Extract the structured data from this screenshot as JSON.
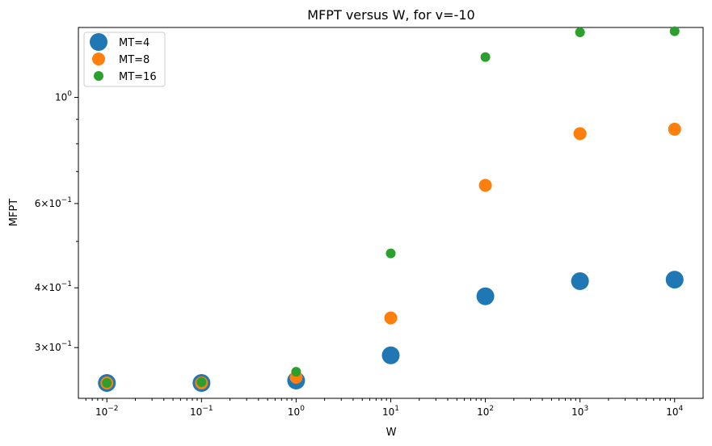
{
  "chart_data": {
    "type": "scatter",
    "title": "MFPT versus W, for v=-10",
    "xlabel": "W",
    "ylabel": "MFPT",
    "xscale": "log",
    "yscale": "log",
    "xlim": [
      0.005,
      20000
    ],
    "ylim": [
      0.235,
      1.4
    ],
    "grid": false,
    "legend_position": "top-left",
    "x": [
      0.01,
      0.1,
      1,
      10,
      100,
      1000,
      10000
    ],
    "x_tick_labels": [
      {
        "base": "10",
        "exp": "−2"
      },
      {
        "base": "10",
        "exp": "−1"
      },
      {
        "base": "10",
        "exp": "0"
      },
      {
        "base": "10",
        "exp": "1"
      },
      {
        "base": "10",
        "exp": "2"
      },
      {
        "base": "10",
        "exp": "3"
      },
      {
        "base": "10",
        "exp": "4"
      }
    ],
    "y_ticks": [
      0.3,
      0.4,
      0.6,
      1.0
    ],
    "y_tick_labels": [
      {
        "text": "3×10",
        "exp": "−1"
      },
      {
        "text": "4×10",
        "exp": "−1"
      },
      {
        "text": "6×10",
        "exp": "−1"
      },
      {
        "text": "10",
        "exp": "0"
      }
    ],
    "series": [
      {
        "name": "MT=4",
        "color": "#1f77b4",
        "marker_size": "large",
        "y": [
          0.253,
          0.253,
          0.256,
          0.289,
          0.384,
          0.413,
          0.416
        ]
      },
      {
        "name": "MT=8",
        "color": "#ff7f0e",
        "marker_size": "medium",
        "y": [
          0.253,
          0.253,
          0.26,
          0.346,
          0.655,
          0.84,
          0.858
        ]
      },
      {
        "name": "MT=16",
        "color": "#2ca02c",
        "marker_size": "small",
        "y": [
          0.253,
          0.254,
          0.267,
          0.472,
          1.214,
          1.368,
          1.375
        ]
      }
    ]
  }
}
